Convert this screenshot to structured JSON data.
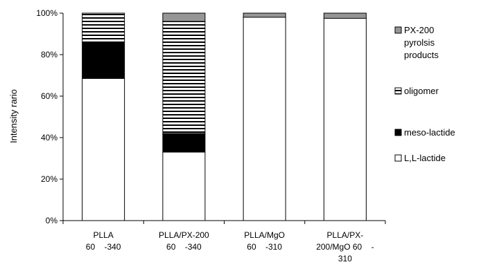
{
  "chart_data": {
    "type": "bar",
    "stacked": true,
    "normalized": true,
    "ylabel": "Intensity rario",
    "ylim": [
      0,
      100
    ],
    "yticks": [
      "0%",
      "20%",
      "40%",
      "60%",
      "80%",
      "100%"
    ],
    "grid": false,
    "legend_position": "right",
    "categories": [
      [
        "PLLA",
        "60    -340"
      ],
      [
        "PLLA/PX-200",
        "60    -340"
      ],
      [
        "PLLA/MgO",
        "60    -310"
      ],
      [
        "PLLA/PX-",
        "200/MgO 60    -",
        "310"
      ]
    ],
    "series": [
      {
        "name": "L,L-lactide",
        "pattern": "white",
        "values": [
          68.5,
          33,
          98,
          97.5
        ]
      },
      {
        "name": "meso-lactide",
        "pattern": "black",
        "values": [
          17.5,
          9,
          0,
          0
        ]
      },
      {
        "name": "oligomer",
        "pattern": "hstripe",
        "values": [
          14,
          54,
          0,
          0
        ]
      },
      {
        "name": "PX-200 pyrolsis products",
        "pattern": "gray",
        "values": [
          0,
          4,
          2,
          2.5
        ]
      }
    ],
    "legend": [
      {
        "series": 3,
        "lines": [
          "PX-200",
          "pyrolsis",
          "products"
        ]
      },
      {
        "series": 2,
        "lines": [
          "oligomer"
        ]
      },
      {
        "series": 1,
        "lines": [
          "meso-lactide"
        ]
      },
      {
        "series": 0,
        "lines": [
          "L,L-lactide"
        ]
      }
    ]
  }
}
